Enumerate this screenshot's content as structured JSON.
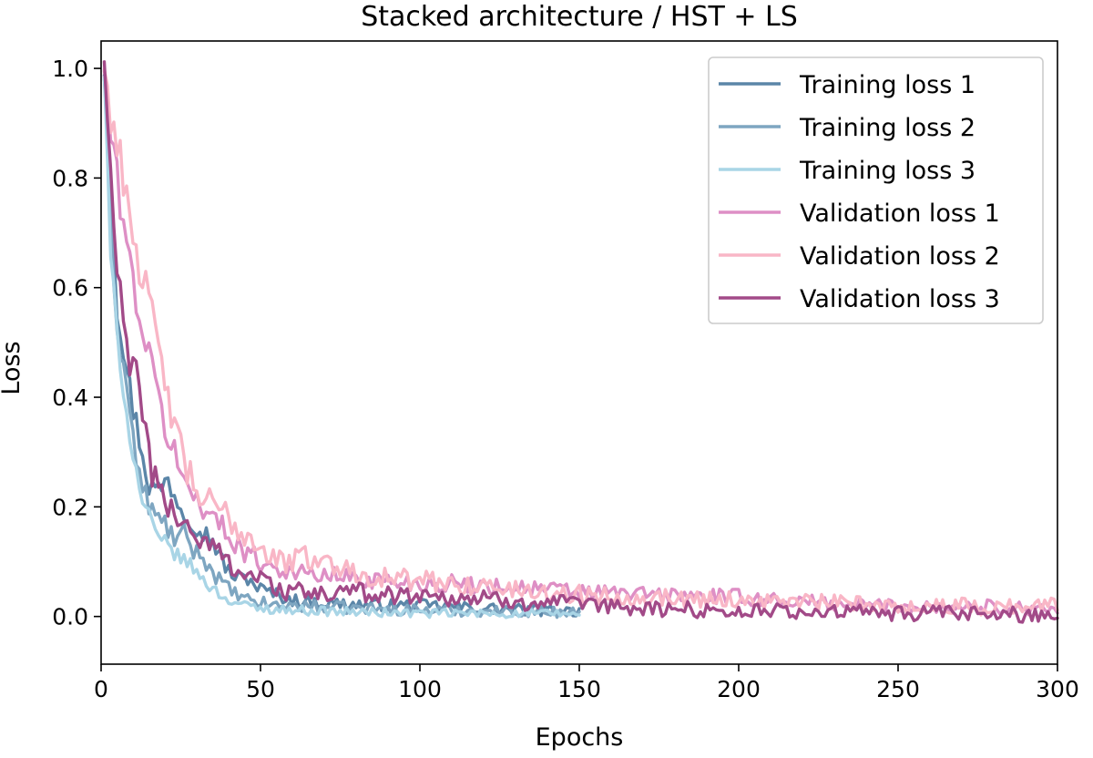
{
  "chart_data": {
    "type": "line",
    "title": "Stacked architecture / HST + LS",
    "xlabel": "Epochs",
    "ylabel": "Loss",
    "xlim": [
      0,
      300
    ],
    "ylim": [
      -0.087,
      1.05
    ],
    "xticks": [
      0,
      50,
      100,
      150,
      200,
      250,
      300
    ],
    "yticks": [
      0.0,
      0.2,
      0.4,
      0.6,
      0.8,
      1.0
    ],
    "xtick_labels": [
      "0",
      "50",
      "100",
      "150",
      "200",
      "250",
      "300"
    ],
    "ytick_labels": [
      "0.0",
      "0.2",
      "0.4",
      "0.6",
      "0.8",
      "1.0"
    ],
    "legend_position": "top-right",
    "grid": false,
    "series": [
      {
        "name": "Training loss 1",
        "color": "#5b86a8",
        "x_end": 150,
        "anchors": [
          [
            1,
            1.0
          ],
          [
            3,
            0.8
          ],
          [
            5,
            0.57
          ],
          [
            8,
            0.45
          ],
          [
            10,
            0.38
          ],
          [
            13,
            0.3
          ],
          [
            15,
            0.24
          ],
          [
            18,
            0.23
          ],
          [
            21,
            0.25
          ],
          [
            25,
            0.2
          ],
          [
            28,
            0.18
          ],
          [
            31,
            0.16
          ],
          [
            35,
            0.14
          ],
          [
            38,
            0.1
          ],
          [
            42,
            0.07
          ],
          [
            46,
            0.07
          ],
          [
            50,
            0.05
          ],
          [
            55,
            0.04
          ],
          [
            60,
            0.03
          ],
          [
            70,
            0.025
          ],
          [
            80,
            0.022
          ],
          [
            90,
            0.02
          ],
          [
            100,
            0.02
          ],
          [
            110,
            0.018
          ],
          [
            120,
            0.015
          ],
          [
            130,
            0.012
          ],
          [
            150,
            0.01
          ]
        ],
        "noise": 0.01
      },
      {
        "name": "Training loss 2",
        "color": "#7ea6c1",
        "x_end": 150,
        "anchors": [
          [
            1,
            0.99
          ],
          [
            3,
            0.72
          ],
          [
            5,
            0.53
          ],
          [
            8,
            0.42
          ],
          [
            10,
            0.33
          ],
          [
            12,
            0.25
          ],
          [
            14,
            0.22
          ],
          [
            17,
            0.18
          ],
          [
            20,
            0.17
          ],
          [
            23,
            0.14
          ],
          [
            26,
            0.15
          ],
          [
            29,
            0.12
          ],
          [
            32,
            0.11
          ],
          [
            35,
            0.08
          ],
          [
            40,
            0.05
          ],
          [
            45,
            0.03
          ],
          [
            50,
            0.025
          ],
          [
            55,
            0.02
          ],
          [
            60,
            0.02
          ],
          [
            80,
            0.015
          ],
          [
            100,
            0.012
          ],
          [
            125,
            0.01
          ],
          [
            150,
            0.008
          ]
        ],
        "noise": 0.01
      },
      {
        "name": "Training loss 3",
        "color": "#a9d5e6",
        "x_end": 150,
        "anchors": [
          [
            1,
            0.99
          ],
          [
            3,
            0.65
          ],
          [
            5,
            0.52
          ],
          [
            8,
            0.37
          ],
          [
            10,
            0.3
          ],
          [
            12,
            0.23
          ],
          [
            15,
            0.18
          ],
          [
            18,
            0.14
          ],
          [
            21,
            0.13
          ],
          [
            24,
            0.11
          ],
          [
            27,
            0.1
          ],
          [
            30,
            0.08
          ],
          [
            35,
            0.05
          ],
          [
            40,
            0.03
          ],
          [
            45,
            0.02
          ],
          [
            50,
            0.015
          ],
          [
            60,
            0.012
          ],
          [
            80,
            0.008
          ],
          [
            100,
            0.006
          ],
          [
            130,
            0.005
          ],
          [
            150,
            0.005
          ]
        ],
        "noise": 0.008
      },
      {
        "name": "Validation loss 1",
        "color": "#de8fc5",
        "x_end": 300,
        "anchors": [
          [
            1,
            1.0
          ],
          [
            3,
            0.88
          ],
          [
            5,
            0.8
          ],
          [
            8,
            0.68
          ],
          [
            11,
            0.58
          ],
          [
            14,
            0.5
          ],
          [
            17,
            0.42
          ],
          [
            20,
            0.35
          ],
          [
            23,
            0.3
          ],
          [
            26,
            0.24
          ],
          [
            30,
            0.22
          ],
          [
            35,
            0.18
          ],
          [
            40,
            0.15
          ],
          [
            45,
            0.12
          ],
          [
            50,
            0.1
          ],
          [
            55,
            0.09
          ],
          [
            60,
            0.08
          ],
          [
            70,
            0.075
          ],
          [
            80,
            0.07
          ],
          [
            90,
            0.065
          ],
          [
            100,
            0.06
          ],
          [
            110,
            0.06
          ],
          [
            125,
            0.055
          ],
          [
            140,
            0.05
          ],
          [
            150,
            0.045
          ],
          [
            175,
            0.04
          ],
          [
            200,
            0.035
          ],
          [
            225,
            0.025
          ],
          [
            250,
            0.02
          ],
          [
            275,
            0.018
          ],
          [
            300,
            0.015
          ]
        ],
        "noise": 0.012
      },
      {
        "name": "Validation loss 2",
        "color": "#f9b6c6",
        "x_end": 300,
        "anchors": [
          [
            1,
            1.0
          ],
          [
            3,
            0.92
          ],
          [
            5,
            0.86
          ],
          [
            8,
            0.78
          ],
          [
            10,
            0.7
          ],
          [
            13,
            0.62
          ],
          [
            16,
            0.54
          ],
          [
            19,
            0.45
          ],
          [
            22,
            0.38
          ],
          [
            25,
            0.3
          ],
          [
            28,
            0.25
          ],
          [
            31,
            0.22
          ],
          [
            35,
            0.2
          ],
          [
            40,
            0.18
          ],
          [
            45,
            0.15
          ],
          [
            50,
            0.13
          ],
          [
            55,
            0.1
          ],
          [
            60,
            0.1
          ],
          [
            65,
            0.11
          ],
          [
            70,
            0.1
          ],
          [
            75,
            0.09
          ],
          [
            80,
            0.08
          ],
          [
            90,
            0.07
          ],
          [
            100,
            0.065
          ],
          [
            110,
            0.06
          ],
          [
            120,
            0.055
          ],
          [
            135,
            0.045
          ],
          [
            150,
            0.04
          ],
          [
            175,
            0.035
          ],
          [
            200,
            0.03
          ],
          [
            225,
            0.025
          ],
          [
            250,
            0.02
          ],
          [
            275,
            0.018
          ],
          [
            300,
            0.02
          ]
        ],
        "noise": 0.014
      },
      {
        "name": "Validation loss 3",
        "color": "#a24a88",
        "x_end": 300,
        "anchors": [
          [
            1,
            1.01
          ],
          [
            3,
            0.8
          ],
          [
            5,
            0.62
          ],
          [
            8,
            0.5
          ],
          [
            10,
            0.45
          ],
          [
            13,
            0.38
          ],
          [
            15,
            0.3
          ],
          [
            18,
            0.22
          ],
          [
            21,
            0.2
          ],
          [
            25,
            0.18
          ],
          [
            29,
            0.15
          ],
          [
            33,
            0.13
          ],
          [
            37,
            0.12
          ],
          [
            40,
            0.1
          ],
          [
            45,
            0.08
          ],
          [
            50,
            0.07
          ],
          [
            55,
            0.05
          ],
          [
            60,
            0.045
          ],
          [
            70,
            0.04
          ],
          [
            80,
            0.045
          ],
          [
            90,
            0.04
          ],
          [
            100,
            0.04
          ],
          [
            110,
            0.035
          ],
          [
            125,
            0.03
          ],
          [
            140,
            0.025
          ],
          [
            150,
            0.02
          ],
          [
            170,
            0.015
          ],
          [
            200,
            0.01
          ],
          [
            230,
            0.008
          ],
          [
            260,
            0.005
          ],
          [
            300,
            0.003
          ]
        ],
        "noise": 0.014
      }
    ]
  }
}
